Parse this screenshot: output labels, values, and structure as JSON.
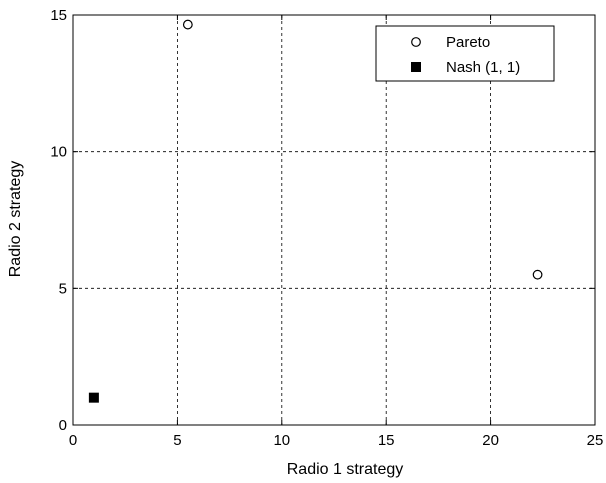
{
  "chart_data": {
    "type": "scatter",
    "title": "",
    "xlabel": "Radio 1 strategy",
    "ylabel": "Radio 2 strategy",
    "xlim": [
      0,
      25
    ],
    "ylim": [
      0,
      15
    ],
    "xticks": [
      0,
      5,
      10,
      15,
      20,
      25
    ],
    "yticks": [
      0,
      5,
      10,
      15
    ],
    "grid": true,
    "grid_style": "dashed",
    "legend_position": "top-right",
    "series": [
      {
        "name": "Pareto",
        "marker": "open-circle",
        "color": "#000000",
        "points": [
          {
            "x": 5.5,
            "y": 14.65
          },
          {
            "x": 22.25,
            "y": 5.5
          }
        ]
      },
      {
        "name": "Nash (1, 1)",
        "marker": "filled-square",
        "color": "#000000",
        "points": [
          {
            "x": 1,
            "y": 1
          }
        ]
      }
    ]
  }
}
